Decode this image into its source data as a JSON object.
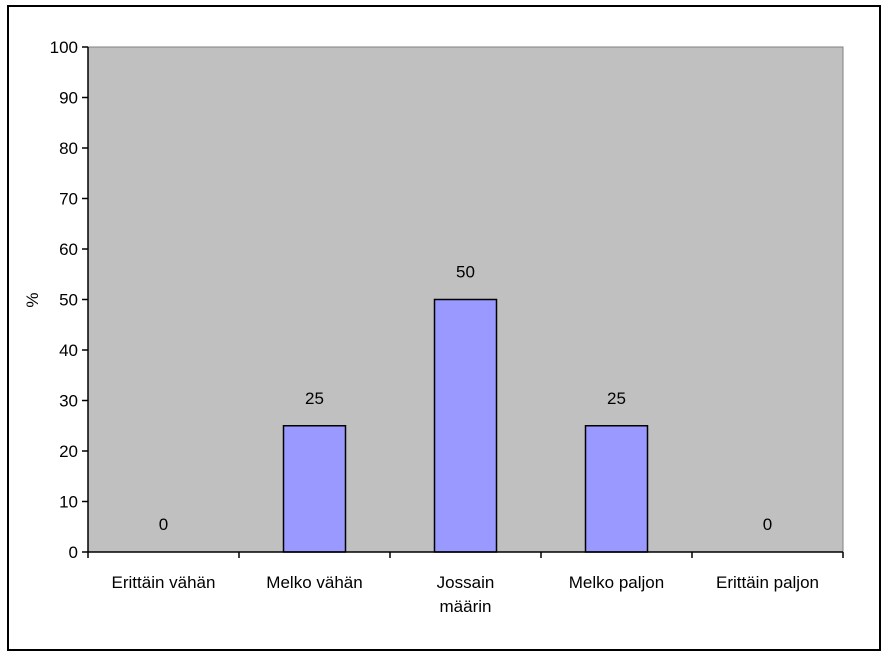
{
  "chart_data": {
    "type": "bar",
    "categories": [
      [
        "Erittäin vähän"
      ],
      [
        "Melko vähän"
      ],
      [
        "Jossain",
        "määrin"
      ],
      [
        "Melko paljon"
      ],
      [
        "Erittäin paljon"
      ]
    ],
    "values": [
      0,
      25,
      50,
      25,
      0
    ],
    "data_labels": [
      "0",
      "25",
      "50",
      "25",
      "0"
    ],
    "ylabel": "%",
    "ylim": [
      0,
      100
    ],
    "yticks": [
      0,
      10,
      20,
      30,
      40,
      50,
      60,
      70,
      80,
      90,
      100
    ],
    "grid": false,
    "legend": "none",
    "colors": {
      "bar_fill": "#9999ff",
      "bar_stroke": "#000000",
      "plot_background": "#c0c0c0",
      "page_background": "#ffffff"
    }
  }
}
